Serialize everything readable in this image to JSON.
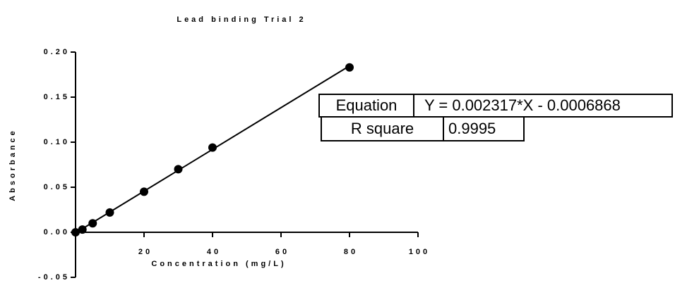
{
  "chart_data": {
    "type": "scatter",
    "title": "Lead binding Trial 2",
    "x_label": "Concentration (mg/L)",
    "y_label": "Absorbance",
    "x": [
      0,
      2,
      5,
      10,
      20,
      30,
      40,
      80
    ],
    "values": [
      0.0,
      0.003,
      0.01,
      0.022,
      0.045,
      0.07,
      0.094,
      0.183
    ],
    "color": "#000000",
    "fit_line": {
      "x": [
        0,
        80
      ],
      "y": [
        -0.0006868,
        0.18467
      ]
    },
    "xlim": [
      0,
      100
    ],
    "xticks": [
      20,
      40,
      60,
      80,
      100
    ],
    "ylim": [
      -0.05,
      0.2
    ],
    "yticks": [
      {
        "value": 0.2,
        "label": "0.20"
      },
      0.15,
      {
        "value": 0.1,
        "label": "0.10"
      },
      0.05,
      {
        "value": 0,
        "label": "0.00"
      },
      -0.05
    ],
    "grid": false,
    "results_table": [
      [
        "Equation",
        "Y = 0.002317*X - 0.0006868"
      ],
      [
        "R square",
        "0.9995"
      ]
    ]
  }
}
